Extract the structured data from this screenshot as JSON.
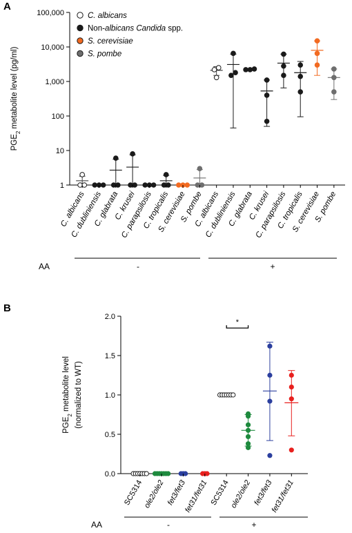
{
  "colors": {
    "albicans": "#ffffff",
    "non_albicans": "#1a1a1a",
    "cerevisiae": "#f26a21",
    "pombe": "#6e6e6e",
    "wt": "#ffffff",
    "ole2": "#1e8a3e",
    "fet3": "#2b3f9e",
    "fet31": "#e8201e"
  },
  "chart_data": [
    {
      "panel": "A",
      "type": "scatter",
      "yscale": "log",
      "ylim": [
        1,
        100000
      ],
      "yticks": [
        "1",
        "10",
        "100",
        "1,000",
        "10,000",
        "100,000"
      ],
      "ylabel_pre": "PGE",
      "ylabel_sub": "2",
      "ylabel_post": " metabolite level (pg/ml)",
      "legend": [
        {
          "key": "albicans",
          "parts": [
            {
              "t": "C. albicans",
              "i": true
            }
          ]
        },
        {
          "key": "non_albicans",
          "parts": [
            {
              "t": "Non-",
              "i": false
            },
            {
              "t": "albicans Candida",
              "i": true
            },
            {
              "t": " spp.",
              "i": false
            }
          ]
        },
        {
          "key": "cerevisiae",
          "parts": [
            {
              "t": "S. cerevisiae",
              "i": true
            }
          ]
        },
        {
          "key": "pombe",
          "parts": [
            {
              "t": "S. pombe",
              "i": true
            }
          ]
        }
      ],
      "categories": [
        "C. albicans",
        "C. dubliniensis",
        "C. glabrata",
        "C. krusei",
        "C. parapsilosis",
        "C. tropicalis",
        "S. cerevisiae",
        "S. pombe",
        "C. albicans",
        "C. dubliniensis",
        "C. glabrata",
        "C. krusei",
        "C. parapsilosis",
        "C. tropicalis",
        "S. cerevisiae",
        "S. pombe"
      ],
      "groups": [
        {
          "color": "albicans",
          "points": [
            1,
            1,
            2
          ],
          "mean": 1.33,
          "lo": 1.0,
          "hi": 1.8
        },
        {
          "color": "non_albicans",
          "points": [
            1,
            1,
            1
          ],
          "mean": 1,
          "lo": 1,
          "hi": 1
        },
        {
          "color": "non_albicans",
          "points": [
            1,
            1,
            6
          ],
          "mean": 2.7,
          "lo": 1,
          "hi": 5.6
        },
        {
          "color": "non_albicans",
          "points": [
            1,
            1,
            8
          ],
          "mean": 3.3,
          "lo": 1,
          "hi": 7.5
        },
        {
          "color": "non_albicans",
          "points": [
            1,
            1,
            1
          ],
          "mean": 1,
          "lo": 1,
          "hi": 1
        },
        {
          "color": "non_albicans",
          "points": [
            1,
            1,
            2
          ],
          "mean": 1.33,
          "lo": 1,
          "hi": 1.9
        },
        {
          "color": "cerevisiae",
          "points": [
            1,
            1,
            1
          ],
          "mean": 1,
          "lo": 1,
          "hi": 1
        },
        {
          "color": "pombe",
          "points": [
            1,
            1,
            3
          ],
          "mean": 1.6,
          "lo": 1,
          "hi": 2.8
        },
        {
          "color": "albicans",
          "points": [
            1300,
            2200,
            2500
          ],
          "mean": 2100,
          "lo": 1500,
          "hi": 2700
        },
        {
          "color": "non_albicans",
          "points": [
            1500,
            1800,
            6500
          ],
          "mean": 3100,
          "lo": 45,
          "hi": 6200
        },
        {
          "color": "non_albicans",
          "points": [
            2200,
            2200,
            2300
          ],
          "mean": 2230,
          "lo": 2200,
          "hi": 2300
        },
        {
          "color": "non_albicans",
          "points": [
            70,
            400,
            1100
          ],
          "mean": 530,
          "lo": 50,
          "hi": 1100
        },
        {
          "color": "non_albicans",
          "points": [
            1500,
            2800,
            6200
          ],
          "mean": 3400,
          "lo": 650,
          "hi": 6200
        },
        {
          "color": "non_albicans",
          "points": [
            500,
            1400,
            3000
          ],
          "mean": 1800,
          "lo": 95,
          "hi": 3800
        },
        {
          "color": "cerevisiae",
          "points": [
            3000,
            6500,
            15000
          ],
          "mean": 8000,
          "lo": 1500,
          "hi": 15000
        },
        {
          "color": "pombe",
          "points": [
            500,
            1300,
            2300
          ],
          "mean": 1300,
          "lo": 300,
          "hi": 2300
        }
      ],
      "aa_label": "AA",
      "aa_groups": [
        "-",
        "+"
      ]
    },
    {
      "panel": "B",
      "type": "scatter",
      "ylim": [
        0,
        2.0
      ],
      "yticks": [
        "0.0",
        "0.5",
        "1.0",
        "1.5",
        "2.0"
      ],
      "ylabel1_pre": "PGE",
      "ylabel1_sub": "2",
      "ylabel1_post": " metabolite level",
      "ylabel2": "(normalized to WT)",
      "categories": [
        "SC5314",
        "ole2/ole2",
        "fet3/fet3",
        "fet31/fet31",
        "SC5314",
        "ole2/ole2",
        "fet3/fet3",
        "fet31/fet31"
      ],
      "cat_italic": [
        false,
        true,
        true,
        true,
        false,
        true,
        true,
        true
      ],
      "groups": [
        {
          "color": "wt",
          "points": [
            0,
            0,
            0,
            0,
            0,
            0,
            0
          ],
          "mean": 0,
          "lo": 0,
          "hi": 0
        },
        {
          "color": "ole2",
          "points": [
            0,
            0,
            0,
            0,
            0,
            0,
            0
          ],
          "mean": 0,
          "lo": 0,
          "hi": 0
        },
        {
          "color": "fet3",
          "points": [
            0,
            0,
            0
          ],
          "mean": 0,
          "lo": 0,
          "hi": 0
        },
        {
          "color": "fet31",
          "points": [
            0,
            0,
            0
          ],
          "mean": 0,
          "lo": 0,
          "hi": 0
        },
        {
          "color": "wt",
          "points": [
            1,
            1,
            1,
            1,
            1,
            1,
            1
          ],
          "mean": 1.0,
          "lo": 1.0,
          "hi": 1.0
        },
        {
          "color": "ole2",
          "points": [
            0.76,
            0.73,
            0.62,
            0.55,
            0.47,
            0.38,
            0.33
          ],
          "mean": 0.55,
          "lo": 0.35,
          "hi": 0.75
        },
        {
          "color": "fet3",
          "points": [
            1.62,
            1.25,
            0.92,
            0.23
          ],
          "mean": 1.05,
          "lo": 0.42,
          "hi": 1.67
        },
        {
          "color": "fet31",
          "points": [
            1.25,
            1.1,
            0.95,
            0.3
          ],
          "mean": 0.9,
          "lo": 0.48,
          "hi": 1.31
        }
      ],
      "significance": "*",
      "aa_label": "AA",
      "aa_groups": [
        "-",
        "+"
      ]
    }
  ]
}
